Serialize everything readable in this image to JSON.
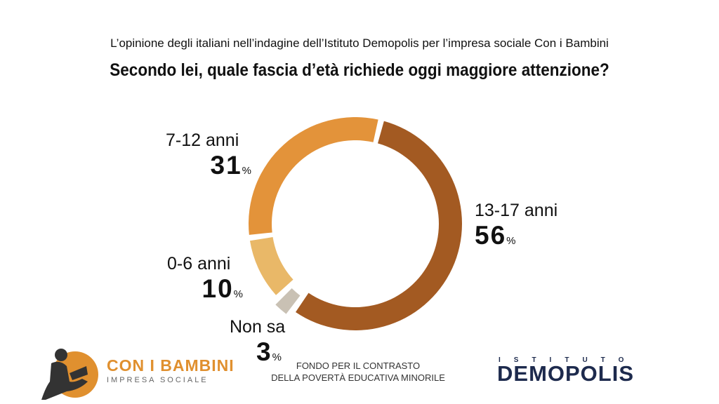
{
  "header": {
    "subtitle": "L’opinione degli italiani nell’indagine dell’Istituto Demopolis per l’impresa sociale Con i Bambini",
    "title": "Secondo lei, quale fascia d’età richiede oggi maggiore attenzione?"
  },
  "chart_data": {
    "type": "pie",
    "title": "Secondo lei, quale fascia d’età richiede oggi maggiore attenzione?",
    "categories": [
      "13-17 anni",
      "Non sa",
      "0-6 anni",
      "7-12 anni"
    ],
    "values": [
      56,
      3,
      10,
      31
    ],
    "unit": "%",
    "colors": [
      "#a35a22",
      "#c9c1b4",
      "#e9b868",
      "#e3933a"
    ],
    "labels": [
      {
        "name": "13-17 anni",
        "value": "56",
        "pct": "%"
      },
      {
        "name": "Non sa",
        "value": "3",
        "pct": "%"
      },
      {
        "name": "0-6 anni",
        "value": "10",
        "pct": "%"
      },
      {
        "name": "7-12 anni",
        "value": "31",
        "pct": "%"
      }
    ]
  },
  "footer": {
    "brand_name": "CON I BAMBINI",
    "brand_sub": "IMPRESA SOCIALE",
    "fund_line1": "FONDO PER IL CONTRASTO",
    "fund_line2": "DELLA POVERTÀ EDUCATIVA MINORILE",
    "demo_top": "ISTITUTO",
    "demo_main": "DEMOPOLIS",
    "brand_color": "#e0902f",
    "demo_color": "#1d2a4d"
  }
}
